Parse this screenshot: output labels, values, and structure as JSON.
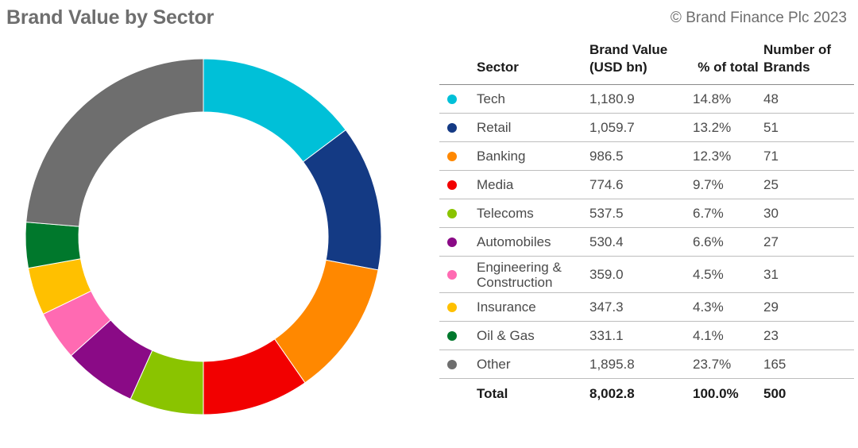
{
  "title": "Brand Value by Sector",
  "copyright": "© Brand Finance Plc 2023",
  "table": {
    "headers": {
      "sector": "Sector",
      "value": "Brand Value (USD bn)",
      "pct": "% of total",
      "num": "Number of Brands"
    },
    "rows": [
      {
        "sector": "Tech",
        "value": "1,180.9",
        "pct": "14.8%",
        "num": "48"
      },
      {
        "sector": "Retail",
        "value": "1,059.7",
        "pct": "13.2%",
        "num": "51"
      },
      {
        "sector": "Banking",
        "value": "986.5",
        "pct": "12.3%",
        "num": "71"
      },
      {
        "sector": "Media",
        "value": "774.6",
        "pct": "9.7%",
        "num": "25"
      },
      {
        "sector": "Telecoms",
        "value": "537.5",
        "pct": "6.7%",
        "num": "30"
      },
      {
        "sector": "Automobiles",
        "value": "530.4",
        "pct": "6.6%",
        "num": "27"
      },
      {
        "sector": "Engineering & Construction",
        "value": "359.0",
        "pct": "4.5%",
        "num": "31"
      },
      {
        "sector": "Insurance",
        "value": "347.3",
        "pct": "4.3%",
        "num": "29"
      },
      {
        "sector": "Oil & Gas",
        "value": "331.1",
        "pct": "4.1%",
        "num": "23"
      },
      {
        "sector": "Other",
        "value": "1,895.8",
        "pct": "23.7%",
        "num": "165"
      }
    ],
    "total": {
      "sector": "Total",
      "value": "8,002.8",
      "pct": "100.0%",
      "num": "500"
    }
  },
  "chart_data": {
    "type": "pie",
    "donut": true,
    "categories": [
      "Tech",
      "Retail",
      "Banking",
      "Media",
      "Telecoms",
      "Automobiles",
      "Engineering & Construction",
      "Insurance",
      "Oil & Gas",
      "Other"
    ],
    "values": [
      1180.9,
      1059.7,
      986.5,
      774.6,
      537.5,
      530.4,
      359.0,
      347.3,
      331.1,
      1895.8
    ],
    "colors": [
      "#00c0d8",
      "#143a84",
      "#ff8800",
      "#f20000",
      "#8ac400",
      "#8a0a86",
      "#ff6ab2",
      "#ffc000",
      "#00782c",
      "#6e6e6e"
    ],
    "start": "12 o'clock",
    "direction": "clockwise",
    "legend": "table on right"
  }
}
